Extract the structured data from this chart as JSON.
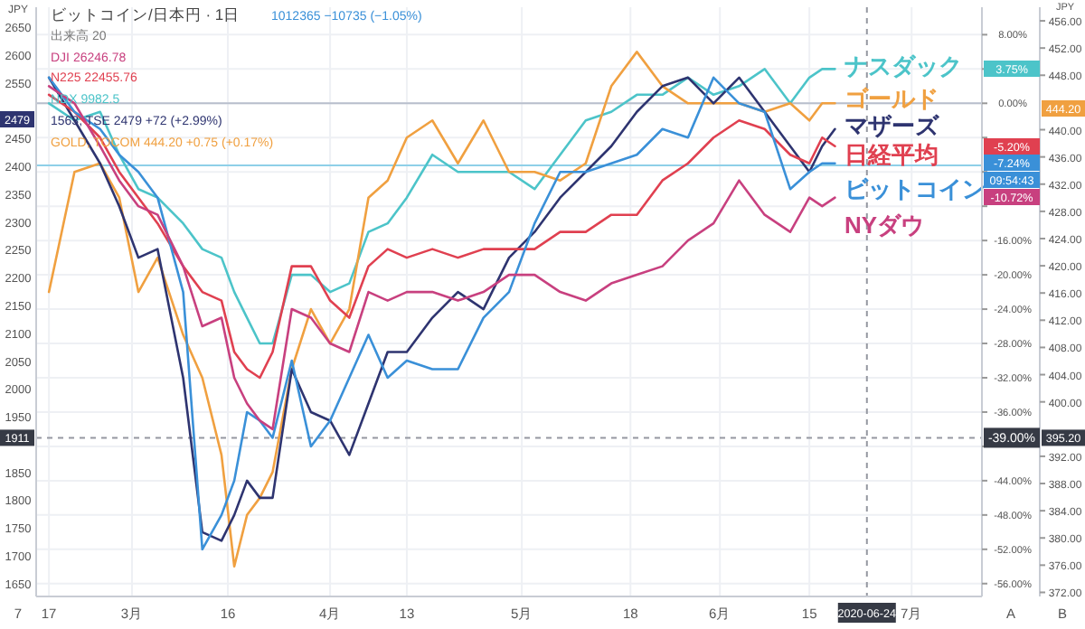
{
  "chart_data": {
    "type": "line",
    "title": "ビットコイン/日本円 · 1日",
    "subtitle": "出来高 20",
    "y2label": "JPY",
    "y3label": "JPY",
    "legend": "top right",
    "x": [
      "2020-02-17",
      "2020-02-21",
      "2020-02-25",
      "2020-02-28",
      "2020-03-02",
      "2020-03-05",
      "2020-03-09",
      "2020-03-12",
      "2020-03-15",
      "2020-03-17",
      "2020-03-19",
      "2020-03-21",
      "2020-03-23",
      "2020-03-26",
      "2020-03-29",
      "2020-04-01",
      "2020-04-04",
      "2020-04-07",
      "2020-04-10",
      "2020-04-13",
      "2020-04-17",
      "2020-04-21",
      "2020-04-25",
      "2020-04-29",
      "2020-05-03",
      "2020-05-07",
      "2020-05-11",
      "2020-05-15",
      "2020-05-19",
      "2020-05-23",
      "2020-05-27",
      "2020-05-31",
      "2020-06-04",
      "2020-06-08",
      "2020-06-12",
      "2020-06-15",
      "2020-06-17",
      "2020-06-19"
    ],
    "series": [
      {
        "name": "ナスダック",
        "color": "#4cc4c9",
        "values": [
          0,
          -2,
          -1,
          -6,
          -10,
          -11,
          -14,
          -17,
          -18,
          -22,
          -25,
          -28,
          -28,
          -20,
          -20,
          -22,
          -21,
          -15,
          -14,
          -11,
          -6,
          -8,
          -8,
          -8,
          -10,
          -6,
          -2,
          -1,
          1,
          1,
          3,
          1,
          2,
          4,
          0,
          3,
          4,
          4
        ]
      },
      {
        "name": "ゴールド",
        "color": "#f0a040",
        "values": [
          -22,
          -8,
          -7,
          -11,
          -22,
          -18,
          -27,
          -32,
          -41,
          -54,
          -48,
          -46,
          -43,
          -31,
          -24,
          -28,
          -24,
          -11,
          -9,
          -4,
          -2,
          -7,
          -2,
          -8,
          -8,
          -9,
          -7,
          2,
          6,
          2,
          0,
          0,
          0,
          -1,
          0,
          -2,
          0,
          0
        ]
      },
      {
        "name": "マザーズ",
        "color": "#2e3470",
        "values": [
          3,
          -2,
          -7,
          -12,
          -18,
          -17,
          -32,
          -50,
          -51,
          -48,
          -44,
          -46,
          -46,
          -31,
          -36,
          -37,
          -41,
          -35,
          -29,
          -29,
          -25,
          -22,
          -24,
          -18,
          -15,
          -11,
          -8,
          -5,
          -1,
          2,
          3,
          0,
          3,
          -1,
          -5,
          -8,
          -5,
          -3
        ]
      },
      {
        "name": "日経平均",
        "color": "#e04050",
        "values": [
          1,
          -1,
          -4,
          -8,
          -11,
          -14,
          -19,
          -22,
          -23,
          -29,
          -31,
          -32,
          -29,
          -19,
          -19,
          -23,
          -25,
          -19,
          -17,
          -18,
          -17,
          -18,
          -17,
          -17,
          -17,
          -15,
          -15,
          -13,
          -13,
          -9,
          -7,
          -4,
          -2,
          -3,
          -6,
          -7,
          -4,
          -5
        ]
      },
      {
        "name": "ビットコイン",
        "color": "#3a90d8",
        "values": [
          3,
          -1,
          -3,
          -6,
          -8,
          -11,
          -22,
          -52,
          -48,
          -44,
          -36,
          -37,
          -39,
          -30,
          -40,
          -37,
          -32,
          -27,
          -32,
          -30,
          -31,
          -31,
          -25,
          -22,
          -14,
          -8,
          -8,
          -7,
          -6,
          -3,
          -4,
          3,
          0,
          -1,
          -10,
          -8,
          -7,
          -7
        ]
      },
      {
        "name": "NYダウ",
        "color": "#c8407f",
        "values": [
          2,
          0,
          -5,
          -9,
          -12,
          -13,
          -19,
          -26,
          -25,
          -32,
          -35,
          -37,
          -38,
          -24,
          -25,
          -28,
          -29,
          -22,
          -23,
          -22,
          -22,
          -23,
          -22,
          -20,
          -20,
          -22,
          -23,
          -21,
          -20,
          -19,
          -16,
          -14,
          -9,
          -13,
          -15,
          -11,
          -12,
          -11
        ]
      }
    ],
    "xlim": [
      "2020-02-15",
      "2020-07-12"
    ],
    "xticks": [
      {
        "value": "2020-02-17",
        "label": "17"
      },
      {
        "value": "2020-03-01",
        "label": "3月"
      },
      {
        "value": "2020-03-16",
        "label": "16"
      },
      {
        "value": "2020-04-01",
        "label": "4月"
      },
      {
        "value": "2020-04-13",
        "label": "13"
      },
      {
        "value": "2020-05-01",
        "label": "5月"
      },
      {
        "value": "2020-05-18",
        "label": "18"
      },
      {
        "value": "2020-06-01",
        "label": "6月"
      },
      {
        "value": "2020-06-15",
        "label": "15"
      },
      {
        "value": "2020-07-01",
        "label": "7月"
      }
    ],
    "ylim": [
      -57.5,
      11.2
    ],
    "yticks": [
      {
        "value": 8,
        "label": "8.00%"
      },
      {
        "value": 4,
        "label": null
      },
      {
        "value": 0,
        "label": "0.00%"
      },
      {
        "value": -4,
        "label": null
      },
      {
        "value": -8,
        "label": null
      },
      {
        "value": -12,
        "label": null
      },
      {
        "value": -16,
        "label": "-16.00%"
      },
      {
        "value": -20,
        "label": "-20.00%"
      },
      {
        "value": -24,
        "label": "-24.00%"
      },
      {
        "value": -28,
        "label": "-28.00%"
      },
      {
        "value": -32,
        "label": "-32.00%"
      },
      {
        "value": -36,
        "label": "-36.00%"
      },
      {
        "value": -40,
        "label": null
      },
      {
        "value": -44,
        "label": "-44.00%"
      },
      {
        "value": -48,
        "label": "-48.00%"
      },
      {
        "value": -52,
        "label": "-52.00%"
      },
      {
        "value": -56,
        "label": "-56.00%"
      }
    ],
    "y2lim": [
      1627,
      2686
    ],
    "y2ticks": [
      2650,
      2600,
      2550,
      2450,
      2400,
      2350,
      2300,
      2250,
      2200,
      2150,
      2100,
      2050,
      2000,
      1950,
      1850,
      1800,
      1750,
      1700,
      1650
    ],
    "y3lim": [
      371.4,
      458
    ],
    "y3ticks": [
      {
        "value": 456,
        "label": "456.00"
      },
      {
        "value": 452,
        "label": "452.00"
      },
      {
        "value": 448,
        "label": "448.00"
      },
      {
        "value": 440,
        "label": "440.00"
      },
      {
        "value": 436,
        "label": "436.00"
      },
      {
        "value": 432,
        "label": "432.00"
      },
      {
        "value": 428,
        "label": "428.00"
      },
      {
        "value": 424,
        "label": "424.00"
      },
      {
        "value": 420,
        "label": "420.00"
      },
      {
        "value": 416,
        "label": "416.00"
      },
      {
        "value": 412,
        "label": "412.00"
      },
      {
        "value": 408,
        "label": "408.00"
      },
      {
        "value": 404,
        "label": "404.00"
      },
      {
        "value": 400,
        "label": "400.00"
      },
      {
        "value": 392,
        "label": "392.00"
      },
      {
        "value": 388,
        "label": "388.00"
      },
      {
        "value": 384,
        "label": "384.00"
      },
      {
        "value": 380,
        "label": "380.00"
      },
      {
        "value": 376,
        "label": "376.00"
      },
      {
        "value": 372,
        "label": "372.00"
      }
    ],
    "grid": true,
    "ref_lines": [
      {
        "axis": "y",
        "value": 0,
        "color": "#b8bfcc"
      },
      {
        "axis": "y",
        "value": -7.24,
        "color": "#8fd0e8"
      },
      {
        "axis": "x",
        "value": "2020-06-24",
        "label": "2020-06-24",
        "color": "#9598a1",
        "line_style": "dashed"
      },
      {
        "axis": "y",
        "value": -39,
        "label": "-39.00%",
        "color": "#9598a1",
        "line_style": "dashed"
      }
    ],
    "annotations": [
      "1012365 −10735 (−1.05%)",
      "DJI 26246.78",
      "N225 22455.76",
      "NDX 9982.5",
      "1563, TSE 2479 +72 (+2.99%)",
      "GOLD, TOCOM 444.20 +0.75 (+0.17%)",
      "2479",
      "09:54:43",
      "7",
      "A",
      "B",
      "3.75%",
      "444.20",
      "-5.20%",
      "-7.24%",
      "-10.72%",
      "1911",
      "395.20"
    ]
  }
}
